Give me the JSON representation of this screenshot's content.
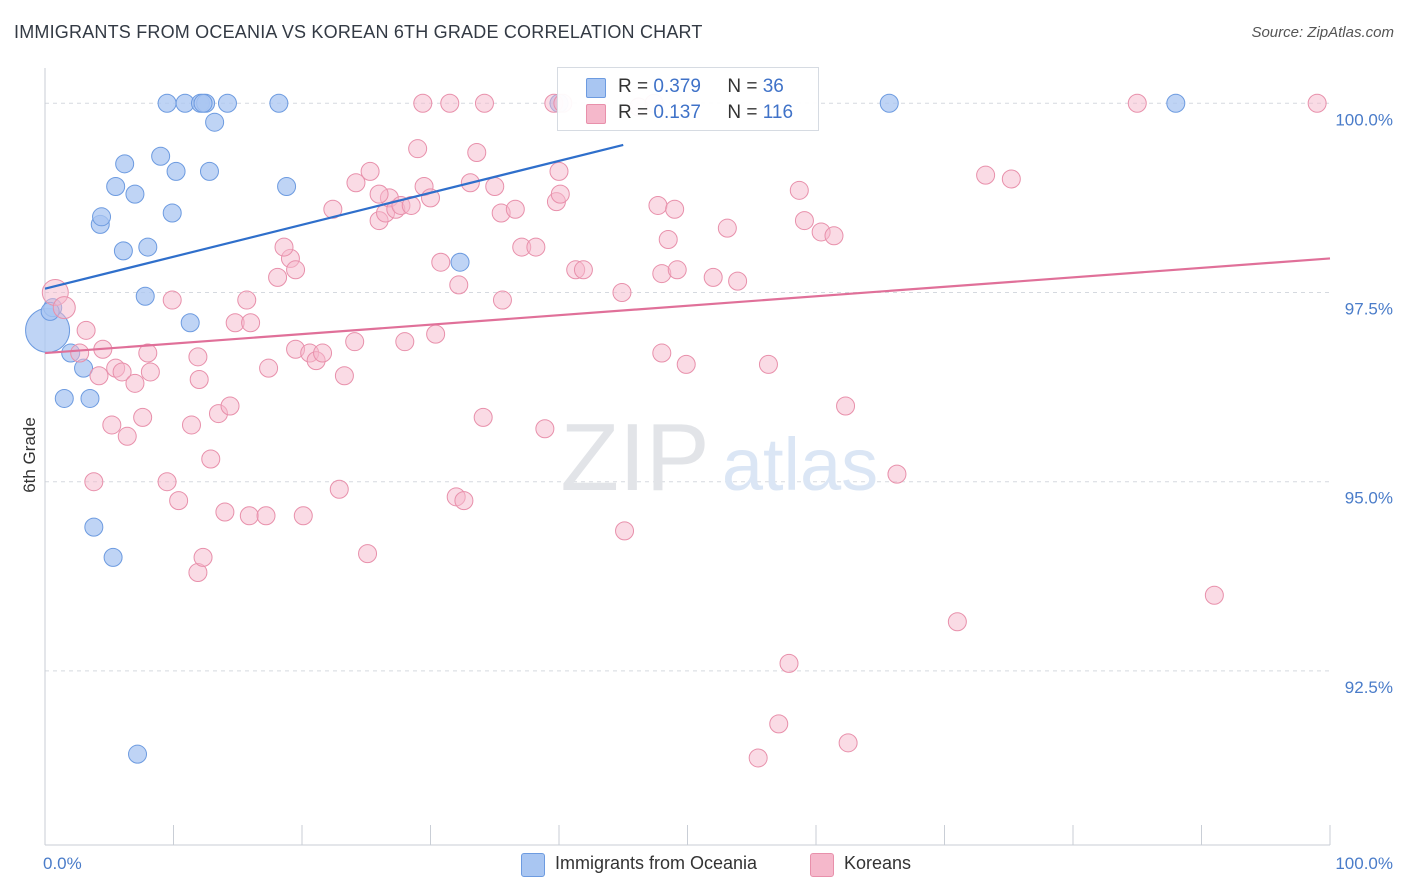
{
  "title": "IMMIGRANTS FROM OCEANIA VS KOREAN 6TH GRADE CORRELATION CHART",
  "source": "Source: ZipAtlas.com",
  "watermark": {
    "zip": "ZIP",
    "atlas": "atlas"
  },
  "legend": {
    "r_label": "R =",
    "n_label": "N =",
    "rows": [
      {
        "r": "0.379",
        "n": "36",
        "color": "#a9c6f2",
        "border": "#6d9be0"
      },
      {
        "r": "0.137",
        "n": "116",
        "color": "#f5b8cb",
        "border": "#e890ab"
      }
    ]
  },
  "chart_data": {
    "type": "scatter",
    "title": "IMMIGRANTS FROM OCEANIA VS KOREAN 6TH GRADE CORRELATION CHART",
    "xlabel": "",
    "ylabel": "6th Grade",
    "xlim": [
      0,
      100
    ],
    "ylim": [
      90.2,
      100.4
    ],
    "x_tick_labels": [
      "0.0%",
      "100.0%"
    ],
    "y_ticks": [
      92.5,
      95.0,
      97.5,
      100.0
    ],
    "y_tick_labels": [
      "92.5%",
      "95.0%",
      "97.5%",
      "100.0%"
    ],
    "grid": "horizontal dashed",
    "legend_position": "top-center",
    "series": [
      {
        "name": "Immigrants from Oceania",
        "color": "#6d9be0",
        "fill": "#a9c6f2",
        "trend": {
          "x": [
            0,
            45
          ],
          "y": [
            97.55,
            99.45
          ],
          "color": "#2f6fcb"
        },
        "points": [
          [
            0.2,
            97.0,
            22
          ],
          [
            0.6,
            97.3,
            9
          ],
          [
            0.4,
            97.25,
            9
          ],
          [
            2.0,
            96.7,
            9
          ],
          [
            3.0,
            96.5,
            9
          ],
          [
            1.5,
            96.1,
            9
          ],
          [
            3.5,
            96.1,
            9
          ],
          [
            3.8,
            94.4,
            9
          ],
          [
            5.3,
            94.0,
            9
          ],
          [
            7.2,
            91.4,
            9
          ],
          [
            4.3,
            98.4,
            9
          ],
          [
            4.4,
            98.5,
            9
          ],
          [
            5.5,
            98.9,
            9
          ],
          [
            6.2,
            99.2,
            9
          ],
          [
            7.0,
            98.8,
            9
          ],
          [
            6.1,
            98.05,
            9
          ],
          [
            8.0,
            98.1,
            9
          ],
          [
            7.8,
            97.45,
            9
          ],
          [
            9.0,
            99.3,
            9
          ],
          [
            10.2,
            99.1,
            9
          ],
          [
            9.9,
            98.55,
            9
          ],
          [
            11.3,
            97.1,
            9
          ],
          [
            12.8,
            99.1,
            9
          ],
          [
            13.2,
            99.75,
            9
          ],
          [
            9.5,
            100.0,
            9
          ],
          [
            10.9,
            100.0,
            9
          ],
          [
            12.1,
            100.0,
            9
          ],
          [
            12.5,
            100.0,
            9
          ],
          [
            14.2,
            100.0,
            9
          ],
          [
            18.2,
            100.0,
            9
          ],
          [
            18.8,
            98.9,
            9
          ],
          [
            12.3,
            100.0,
            9
          ],
          [
            32.3,
            97.9,
            9
          ],
          [
            40.0,
            100.0,
            9
          ],
          [
            65.7,
            100.0,
            9
          ],
          [
            88.0,
            100.0,
            9
          ]
        ]
      },
      {
        "name": "Koreans",
        "color": "#e890ab",
        "fill": "#f5b8cb",
        "trend": {
          "x": [
            0,
            100
          ],
          "y": [
            96.7,
            97.95
          ],
          "color": "#e07099"
        },
        "points": [
          [
            0.8,
            97.5,
            13
          ],
          [
            1.5,
            97.3,
            11
          ],
          [
            3.2,
            97.0,
            9
          ],
          [
            2.7,
            96.7,
            9
          ],
          [
            4.5,
            96.75,
            9
          ],
          [
            4.2,
            96.4,
            9
          ],
          [
            5.5,
            96.5,
            9
          ],
          [
            6.0,
            96.45,
            9
          ],
          [
            7.0,
            96.3,
            9
          ],
          [
            8.2,
            96.45,
            9
          ],
          [
            8.0,
            96.7,
            9
          ],
          [
            7.6,
            95.85,
            9
          ],
          [
            5.2,
            95.75,
            9
          ],
          [
            6.4,
            95.6,
            9
          ],
          [
            3.8,
            95.0,
            9
          ],
          [
            9.5,
            95.0,
            9
          ],
          [
            10.4,
            94.75,
            9
          ],
          [
            11.4,
            95.75,
            9
          ],
          [
            12.9,
            95.3,
            9
          ],
          [
            13.5,
            95.9,
            9
          ],
          [
            14.4,
            96.0,
            9
          ],
          [
            12.0,
            96.35,
            9
          ],
          [
            9.9,
            97.4,
            9
          ],
          [
            14.8,
            97.1,
            9
          ],
          [
            16.0,
            97.1,
            9
          ],
          [
            15.7,
            97.4,
            9
          ],
          [
            17.4,
            96.5,
            9
          ],
          [
            14.0,
            94.6,
            9
          ],
          [
            15.9,
            94.55,
            9
          ],
          [
            17.2,
            94.55,
            9
          ],
          [
            11.9,
            93.8,
            9
          ],
          [
            12.3,
            94.0,
            9
          ],
          [
            20.1,
            94.55,
            9
          ],
          [
            22.9,
            94.9,
            9
          ],
          [
            25.1,
            94.05,
            9
          ],
          [
            18.1,
            97.7,
            9
          ],
          [
            19.1,
            97.95,
            9
          ],
          [
            19.5,
            97.8,
            9
          ],
          [
            18.6,
            98.1,
            9
          ],
          [
            19.5,
            96.75,
            9
          ],
          [
            20.6,
            96.7,
            9
          ],
          [
            21.1,
            96.6,
            9
          ],
          [
            21.6,
            96.7,
            9
          ],
          [
            23.3,
            96.4,
            9
          ],
          [
            24.1,
            96.85,
            9
          ],
          [
            22.4,
            98.6,
            9
          ],
          [
            24.2,
            98.95,
            9
          ],
          [
            25.3,
            99.1,
            9
          ],
          [
            26.0,
            98.45,
            9
          ],
          [
            26.5,
            98.55,
            9
          ],
          [
            26.8,
            98.75,
            9
          ],
          [
            27.3,
            98.6,
            9
          ],
          [
            27.7,
            98.65,
            9
          ],
          [
            28.5,
            98.65,
            9
          ],
          [
            29.5,
            98.9,
            9
          ],
          [
            30.0,
            98.75,
            9
          ],
          [
            29.0,
            99.4,
            9
          ],
          [
            28.0,
            96.85,
            9
          ],
          [
            30.4,
            96.95,
            9
          ],
          [
            32.0,
            94.8,
            9
          ],
          [
            32.6,
            94.75,
            9
          ],
          [
            32.2,
            97.6,
            9
          ],
          [
            31.5,
            100.0,
            9
          ],
          [
            34.2,
            100.0,
            9
          ],
          [
            33.6,
            99.35,
            9
          ],
          [
            33.1,
            98.95,
            9
          ],
          [
            35.0,
            98.9,
            9
          ],
          [
            34.1,
            95.85,
            9
          ],
          [
            35.5,
            98.55,
            9
          ],
          [
            36.6,
            98.6,
            9
          ],
          [
            37.1,
            98.1,
            9
          ],
          [
            38.2,
            98.1,
            9
          ],
          [
            35.6,
            97.4,
            9
          ],
          [
            39.6,
            100.0,
            9
          ],
          [
            40.3,
            100.0,
            9
          ],
          [
            40.0,
            99.1,
            9
          ],
          [
            39.8,
            98.7,
            9
          ],
          [
            38.9,
            95.7,
            9
          ],
          [
            41.3,
            97.8,
            9
          ],
          [
            41.9,
            97.8,
            9
          ],
          [
            44.9,
            97.5,
            9
          ],
          [
            46.2,
            99.95,
            9
          ],
          [
            47.4,
            100.0,
            9
          ],
          [
            47.7,
            98.65,
            9
          ],
          [
            48.0,
            97.75,
            9
          ],
          [
            45.1,
            94.35,
            9
          ],
          [
            48.5,
            98.2,
            9
          ],
          [
            48.0,
            96.7,
            9
          ],
          [
            49.0,
            98.6,
            9
          ],
          [
            49.2,
            97.8,
            9
          ],
          [
            49.9,
            96.55,
            9
          ],
          [
            52.0,
            97.7,
            9
          ],
          [
            53.1,
            98.35,
            9
          ],
          [
            53.9,
            97.65,
            9
          ],
          [
            56.3,
            96.55,
            9
          ],
          [
            58.7,
            98.85,
            9
          ],
          [
            59.1,
            98.45,
            9
          ],
          [
            60.4,
            98.3,
            9
          ],
          [
            61.4,
            98.25,
            9
          ],
          [
            62.3,
            96.0,
            9
          ],
          [
            57.9,
            92.6,
            9
          ],
          [
            57.1,
            91.8,
            9
          ],
          [
            55.5,
            91.35,
            9
          ],
          [
            62.5,
            91.55,
            9
          ],
          [
            66.3,
            95.1,
            9
          ],
          [
            73.2,
            99.05,
            9
          ],
          [
            75.2,
            99.0,
            9
          ],
          [
            71.0,
            93.15,
            9
          ],
          [
            85.0,
            100.0,
            9
          ],
          [
            99.0,
            100.0,
            9
          ],
          [
            91.0,
            93.5,
            9
          ],
          [
            11.9,
            96.65,
            9
          ],
          [
            26.0,
            98.8,
            9
          ],
          [
            40.1,
            98.8,
            9
          ],
          [
            29.4,
            100.0,
            9
          ],
          [
            30.8,
            97.9,
            9
          ]
        ]
      }
    ]
  },
  "bottom_legend": [
    {
      "label": "Immigrants from Oceania",
      "color": "#a9c6f2",
      "border": "#6d9be0"
    },
    {
      "label": "Koreans",
      "color": "#f5b8cb",
      "border": "#e890ab"
    }
  ]
}
